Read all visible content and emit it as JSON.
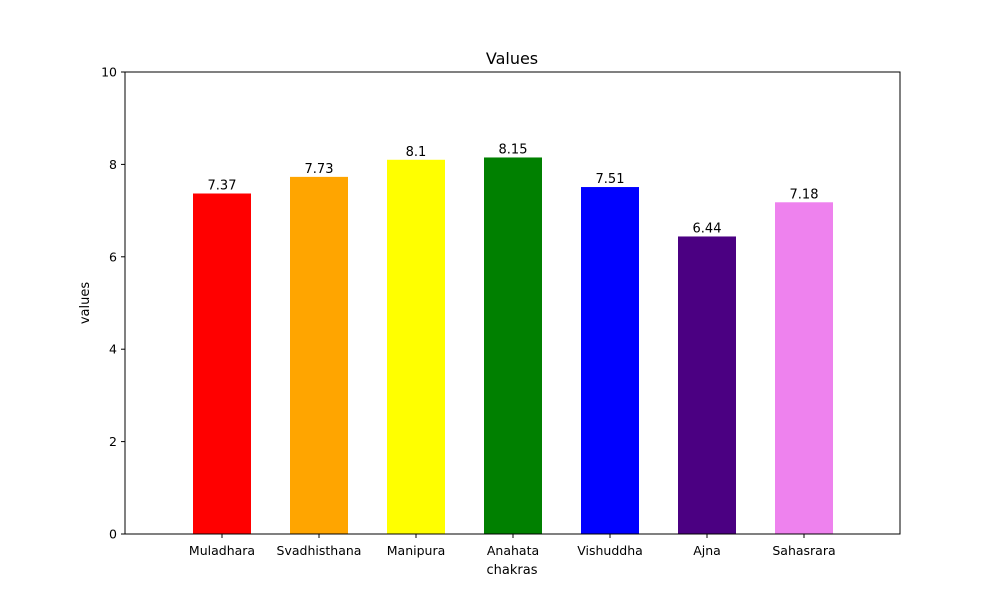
{
  "chart_data": {
    "type": "bar",
    "title": "Values",
    "xlabel": "chakras",
    "ylabel": "values",
    "categories": [
      "Muladhara",
      "Svadhisthana",
      "Manipura",
      "Anahata",
      "Vishuddha",
      "Ajna",
      "Sahasrara"
    ],
    "values": [
      7.37,
      7.73,
      8.1,
      8.15,
      7.51,
      6.44,
      7.18
    ],
    "value_labels": [
      "7.37",
      "7.73",
      "8.1",
      "8.15",
      "7.51",
      "6.44",
      "7.18"
    ],
    "colors": [
      "#ff0000",
      "#ffa500",
      "#ffff00",
      "#008000",
      "#0000ff",
      "#4b0082",
      "#ee82ee"
    ],
    "ylim": [
      0,
      10
    ],
    "yticks": [
      0,
      2,
      4,
      6,
      8,
      10
    ],
    "grid": false,
    "legend": "none"
  }
}
